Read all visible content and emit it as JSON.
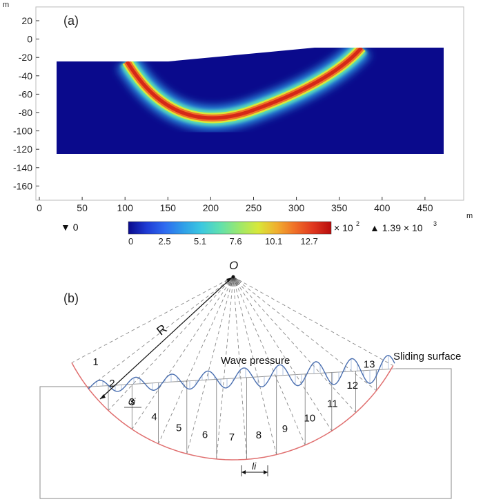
{
  "panel_a": {
    "label": "(a)",
    "x_unit": "m",
    "y_unit": "m",
    "x_ticks": [
      "0",
      "50",
      "100",
      "150",
      "200",
      "250",
      "300",
      "350",
      "400",
      "450"
    ],
    "y_ticks": [
      "20",
      "0",
      "-20",
      "-40",
      "-60",
      "-80",
      "-100",
      "-120",
      "-140",
      "-160"
    ],
    "min_marker": "▼ 0",
    "max_marker": "▲ 1.39 × 10",
    "max_marker_exp": "3",
    "colorbar_multiplier": "× 10",
    "colorbar_multiplier_exp": "2",
    "colorbar_ticks": [
      "0",
      "2.5",
      "5.1",
      "7.6",
      "10.1",
      "12.7"
    ],
    "colors": [
      "#0a0a8c",
      "#1f3bd4",
      "#2e6bf0",
      "#2f9ee8",
      "#3cc8e0",
      "#5fe0b0",
      "#9ee86a",
      "#d8e83a",
      "#f0b030",
      "#f07028",
      "#e03820",
      "#b80c0c"
    ]
  },
  "panel_b": {
    "label": "(b)",
    "center_label": "O",
    "radius_label": "R",
    "wave_label": "Wave pressure",
    "surface_label": "Sliding surface",
    "angle_label": "αi",
    "length_label": "li",
    "slices": [
      "1",
      "2",
      "3",
      "4",
      "5",
      "6",
      "7",
      "8",
      "9",
      "10",
      "11",
      "12",
      "13"
    ]
  }
}
